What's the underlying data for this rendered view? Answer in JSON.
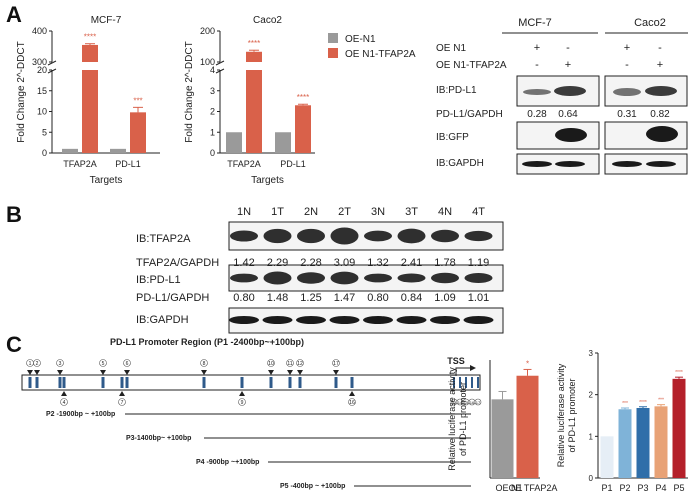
{
  "panels": {
    "a": "A",
    "b": "B",
    "c": "C"
  },
  "colors": {
    "oe_n1": "#9a9a9a",
    "oe_tfap2a": "#d9614a",
    "sig": "#d9614a"
  },
  "chart_data": [
    {
      "id": "qpcr_mcf7",
      "type": "bar",
      "title": "MCF-7",
      "xlabel": "Targets",
      "ylabel": "Fold Change 2^-DDCT",
      "categories": [
        "TFAP2A",
        "PD-L1"
      ],
      "broken_axis": {
        "lower_ticks": [
          0,
          5,
          10,
          15,
          20
        ],
        "upper_ticks": [
          300,
          400
        ]
      },
      "series": [
        {
          "name": "OE-N1",
          "values": [
            1,
            1
          ]
        },
        {
          "name": "OE N1-TFAP2A",
          "values": [
            355,
            9.8
          ],
          "errors": [
            4,
            1.2
          ]
        }
      ],
      "significance": [
        "****",
        "***"
      ]
    },
    {
      "id": "qpcr_caco2",
      "type": "bar",
      "title": "Caco2",
      "xlabel": "Targets",
      "ylabel": "Fold Change 2^-DDCT",
      "categories": [
        "TFAP2A",
        "PD-L1"
      ],
      "broken_axis": {
        "lower_ticks": [
          0,
          1,
          2,
          3,
          4
        ],
        "upper_ticks": [
          100,
          200
        ]
      },
      "series": [
        {
          "name": "OE-N1",
          "values": [
            1,
            1
          ]
        },
        {
          "name": "OE N1-TFAP2A",
          "values": [
            133,
            2.3
          ],
          "errors": [
            5,
            0.05
          ]
        }
      ],
      "significance": [
        "****",
        "****"
      ],
      "legend": [
        "OE-N1",
        "OE N1-TFAP2A"
      ]
    },
    {
      "id": "luc_two",
      "type": "bar",
      "ylabel": "Relative luciferase activity of PD-L1 promoter",
      "categories": [
        "OE N1",
        "OE TFAP2A"
      ],
      "values": [
        1.0,
        1.3
      ],
      "errors": [
        0.1,
        0.08
      ],
      "ylim": [
        0,
        1.5
      ],
      "significance": [
        "",
        "*"
      ]
    },
    {
      "id": "luc_promoter",
      "type": "bar",
      "ylabel": "Relative luciferase activity of PD-L1 promoter",
      "categories": [
        "P1",
        "P2",
        "P3",
        "P4",
        "P5"
      ],
      "values": [
        1.0,
        1.65,
        1.68,
        1.72,
        2.38
      ],
      "errors": [
        0,
        0.03,
        0.03,
        0.04,
        0.04
      ],
      "ylim": [
        0,
        3
      ],
      "yticks": [
        0,
        1,
        2,
        3
      ],
      "bar_colors": [
        "#e6eef6",
        "#7fb3d8",
        "#2f6ea9",
        "#e8a276",
        "#b4202a"
      ],
      "significance": [
        "",
        "***",
        "****",
        "***",
        "****"
      ]
    }
  ],
  "western_a": {
    "cell_lines": [
      "MCF-7",
      "Caco2"
    ],
    "rows": [
      {
        "label": "OE N1",
        "marks": [
          "+",
          "-",
          "+",
          "-"
        ]
      },
      {
        "label": "OE N1-TFAP2A",
        "marks": [
          "-",
          "+",
          "-",
          "+"
        ]
      }
    ],
    "blot_pdl1": "IB:PD-L1",
    "ratio_label": "PD-L1/GAPDH",
    "ratios": [
      "0.28",
      "0.64",
      "0.31",
      "0.82"
    ],
    "blot_gfp": "IB:GFP",
    "blot_gapdh": "IB:GAPDH"
  },
  "western_b": {
    "lanes": [
      "1N",
      "1T",
      "2N",
      "2T",
      "3N",
      "3T",
      "4N",
      "4T"
    ],
    "blot_tfap2a": "IB:TFAP2A",
    "tfap2a_ratio_label": "TFAP2A/GAPDH",
    "tfap2a_ratios": [
      "1.42",
      "2.29",
      "2.28",
      "3.09",
      "1.32",
      "2.41",
      "1.78",
      "1.19"
    ],
    "blot_pdl1": "IB:PD-L1",
    "pdl1_ratio_label": "PD-L1/GAPDH",
    "pdl1_ratios": [
      "0.80",
      "1.48",
      "1.25",
      "1.47",
      "0.80",
      "0.84",
      "1.09",
      "1.01"
    ],
    "blot_gapdh": "IB:GAPDH"
  },
  "promoter": {
    "title": "PD-L1 Promoter Region (P1 -2400bp~+100bp)",
    "tss": "TSS",
    "sites_top": [
      "1",
      "2",
      "3",
      "5",
      "6",
      "8",
      "10",
      "11",
      "12",
      "17"
    ],
    "sites_bottom": [
      "4",
      "7",
      "9",
      "16"
    ],
    "sites_tss": [
      "13",
      "14",
      "15",
      "16",
      "17"
    ],
    "constructs": [
      "P2 -1900bp ~ +100bp",
      "P3-1400bp~ +100bp",
      "P4 -900bp ~+100bp",
      "P5 -400bp ~ +100bp"
    ]
  }
}
